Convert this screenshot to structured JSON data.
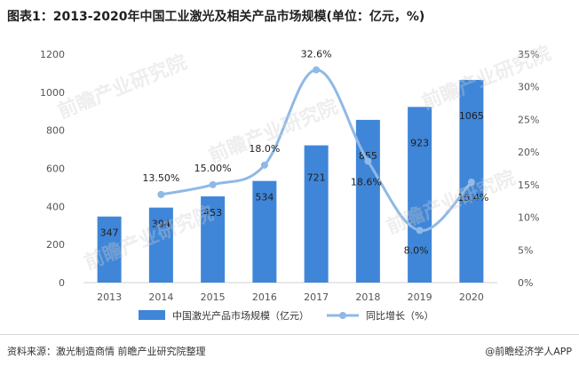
{
  "title": "图表1：2013-2020年中国工业激光及相关产品市场规模(单位：亿元，%)",
  "footer": {
    "source": "资料来源：激光制造商情 前瞻产业研究院整理",
    "credit": "@前瞻经济学人APP"
  },
  "watermark": "前瞻产业研究院",
  "colors": {
    "bar": "#3f86d8",
    "line": "#8fb9e6",
    "axis_text": "#555555",
    "grid": "#e6e6e6"
  },
  "chart_data": {
    "type": "bar",
    "categories": [
      "2013",
      "2014",
      "2015",
      "2016",
      "2017",
      "2018",
      "2019",
      "2020"
    ],
    "series": [
      {
        "name": "中国激光产品市场规模（亿元）",
        "type": "bar",
        "axis": "left",
        "values": [
          347,
          394,
          453,
          534,
          721,
          855,
          923,
          1065
        ],
        "labels": [
          "347",
          "394",
          "453",
          "534",
          "721",
          "855",
          "923",
          "1065"
        ]
      },
      {
        "name": "同比增长（%）",
        "type": "line",
        "axis": "right",
        "x": [
          "2014",
          "2015",
          "2016",
          "2017",
          "2018",
          "2019",
          "2020"
        ],
        "values": [
          13.5,
          15.0,
          18.0,
          32.6,
          18.6,
          8.0,
          15.4
        ],
        "labels": [
          "13.50%",
          "15.00%",
          "18.0%",
          "32.6%",
          "18.6%",
          "8.0%",
          "15.4%"
        ]
      }
    ],
    "y_left": {
      "min": 0,
      "max": 1200,
      "ticks": [
        "0",
        "200",
        "400",
        "600",
        "800",
        "1000",
        "1200"
      ]
    },
    "y_right": {
      "min": 0,
      "max": 35,
      "ticks": [
        "0%",
        "5%",
        "10%",
        "15%",
        "20%",
        "25%",
        "30%",
        "35%"
      ]
    },
    "grid": false,
    "legend": "bottom"
  }
}
